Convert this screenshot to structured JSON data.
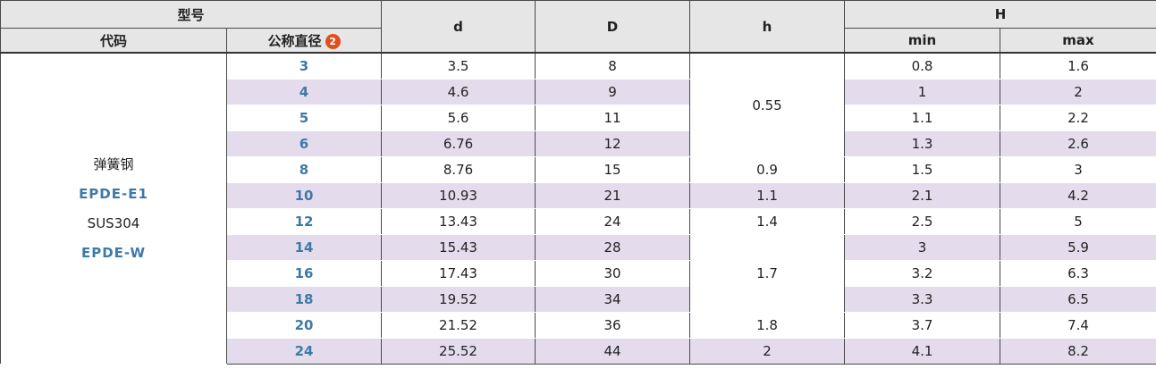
{
  "header": {
    "model_group": "型号",
    "code": "代码",
    "nominal_diameter": "公称直径",
    "note_badge": "2",
    "d": "d",
    "D": "D",
    "h": "h",
    "H": "H",
    "H_min": "min",
    "H_max": "max"
  },
  "materials": {
    "m1_name": "弹簧钢",
    "m1_code": "EPDE-E1",
    "m2_name": "SUS304",
    "m2_code": "EPDE-W"
  },
  "h_values": {
    "g1": "0.55",
    "r8": "0.9",
    "r10": "1.1",
    "r12": "1.4",
    "g2": "1.7",
    "r20": "1.8",
    "r24": "2"
  },
  "rows": [
    {
      "size": "3",
      "d": "3.5",
      "D": "8",
      "hmin": "0.8",
      "hmax": "1.6"
    },
    {
      "size": "4",
      "d": "4.6",
      "D": "9",
      "hmin": "1",
      "hmax": "2"
    },
    {
      "size": "5",
      "d": "5.6",
      "D": "11",
      "hmin": "1.1",
      "hmax": "2.2"
    },
    {
      "size": "6",
      "d": "6.76",
      "D": "12",
      "hmin": "1.3",
      "hmax": "2.6"
    },
    {
      "size": "8",
      "d": "8.76",
      "D": "15",
      "hmin": "1.5",
      "hmax": "3"
    },
    {
      "size": "10",
      "d": "10.93",
      "D": "21",
      "hmin": "2.1",
      "hmax": "4.2"
    },
    {
      "size": "12",
      "d": "13.43",
      "D": "24",
      "hmin": "2.5",
      "hmax": "5"
    },
    {
      "size": "14",
      "d": "15.43",
      "D": "28",
      "hmin": "3",
      "hmax": "5.9"
    },
    {
      "size": "16",
      "d": "17.43",
      "D": "30",
      "hmin": "3.2",
      "hmax": "6.3"
    },
    {
      "size": "18",
      "d": "19.52",
      "D": "34",
      "hmin": "3.3",
      "hmax": "6.5"
    },
    {
      "size": "20",
      "d": "21.52",
      "D": "36",
      "hmin": "3.7",
      "hmax": "7.4"
    },
    {
      "size": "24",
      "d": "25.52",
      "D": "44",
      "hmin": "4.1",
      "hmax": "8.2"
    }
  ],
  "colors": {
    "header_bg": "#e6e6e6",
    "stripe": "#e4dcec",
    "accent_blue": "#3d7aa6",
    "badge_orange": "#e0501e"
  }
}
